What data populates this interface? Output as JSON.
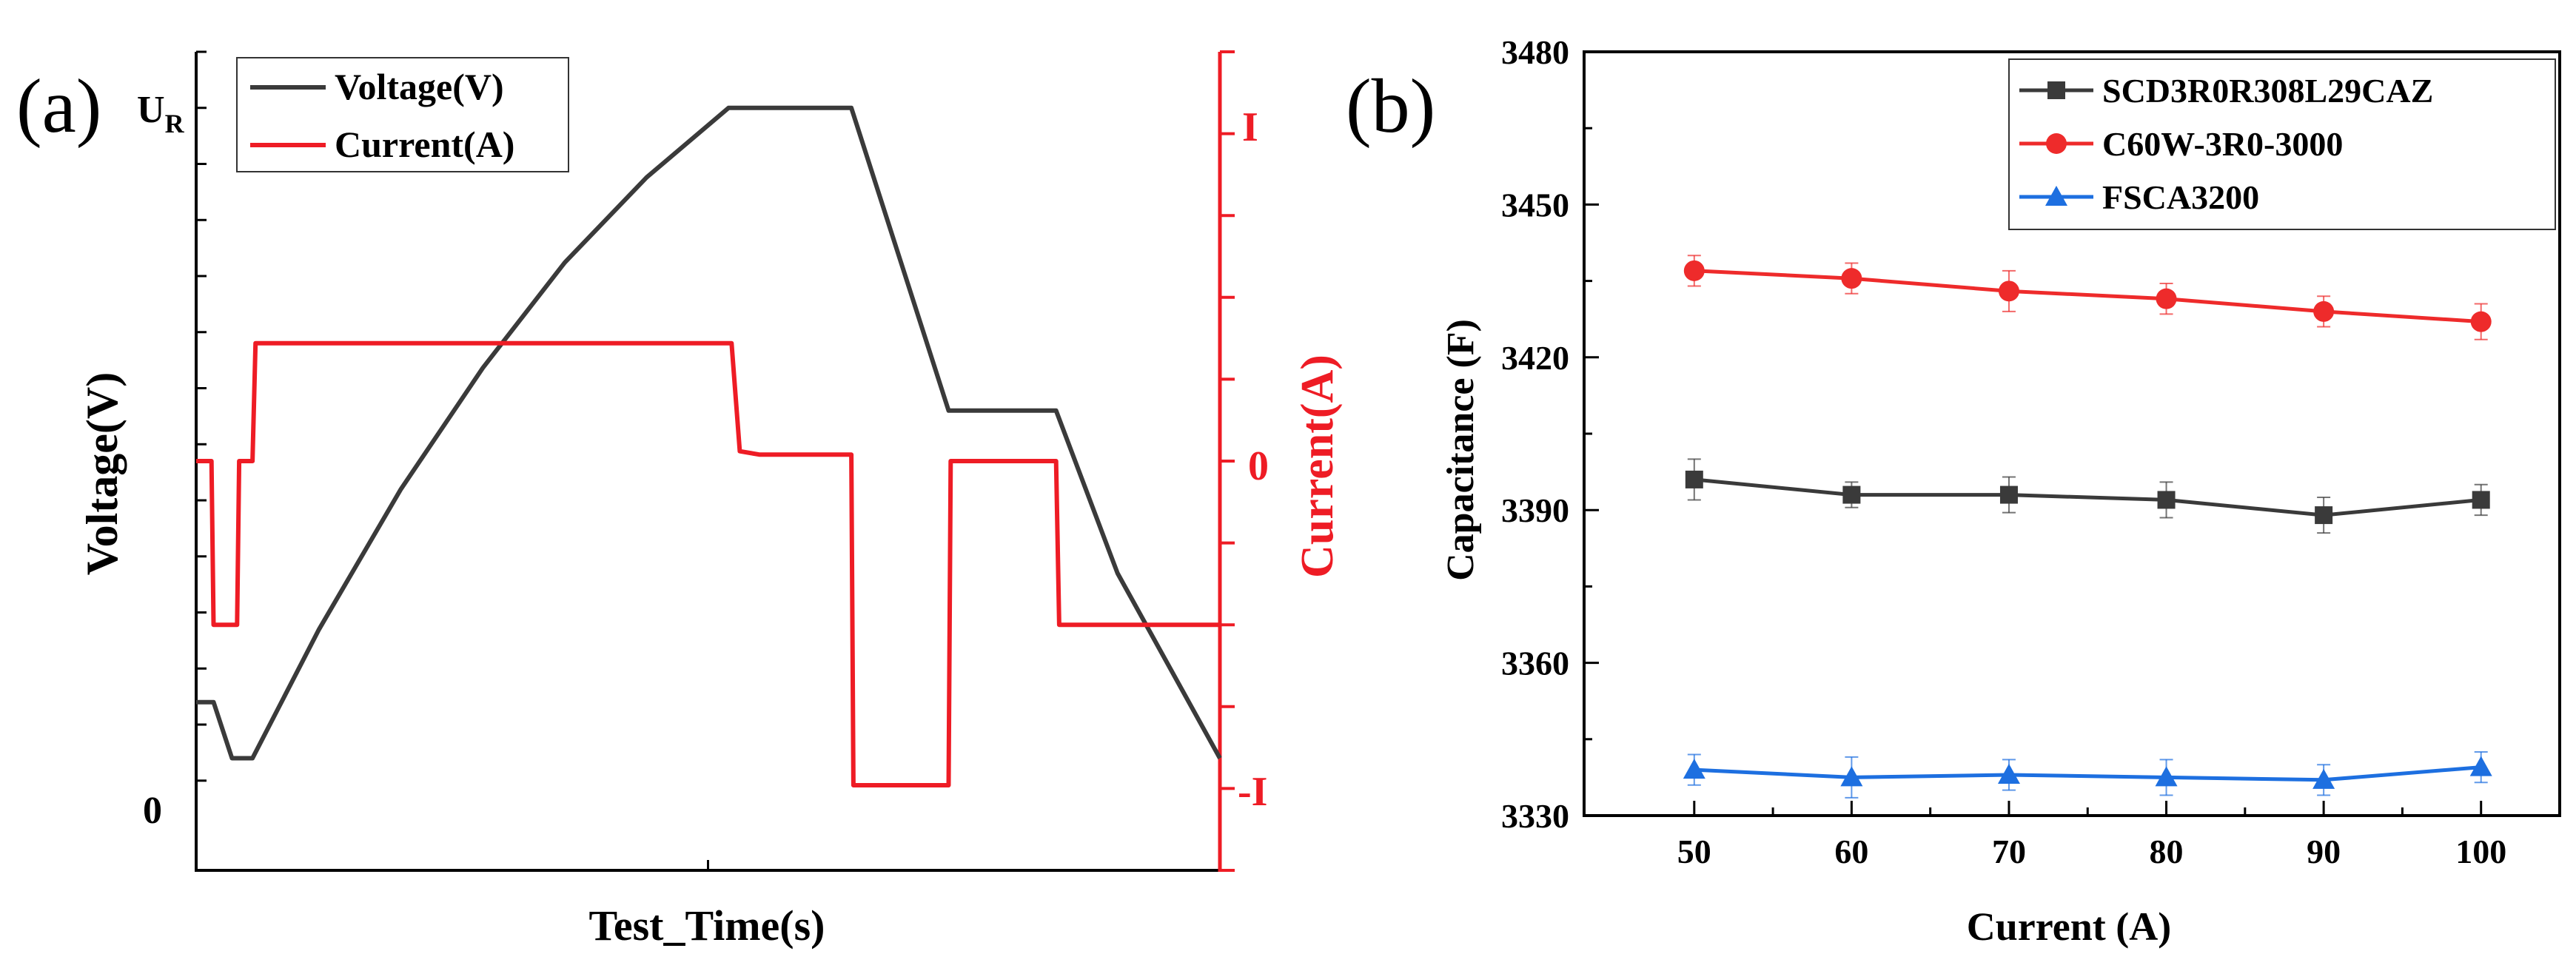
{
  "figure": {
    "panel_a_label": "(a)",
    "panel_b_label": "(b)"
  },
  "colors": {
    "axis": "#000000",
    "voltage": "#3a3a3a",
    "current": "#ee1c25",
    "scd": "#3a3a3a",
    "c60w": "#ee2b2b",
    "fsca": "#1d6fe0"
  },
  "chart_data": [
    {
      "type": "line",
      "id": "panel-a",
      "title": "",
      "xlabel": "Test_Time(s)",
      "ylabel": "Voltage(V)",
      "ylabel_right": "Current(A)",
      "xlim": [
        0,
        100
      ],
      "ylim": [
        -0.8,
        6.5
      ],
      "ylim_right": [
        -1.25,
        1.25
      ],
      "left_tick_labels": [
        {
          "text": "U",
          "sub": "R",
          "y": 6.0
        },
        {
          "text": "0",
          "y": 0.0
        }
      ],
      "right_tick_labels": [
        {
          "text": "I",
          "y": 1.0
        },
        {
          "text": "0",
          "y": 0.0
        },
        {
          "text": "-I",
          "y": -1.0
        }
      ],
      "left_minor_ticks": [
        -0.8,
        0.0,
        0.5,
        1.0,
        1.5,
        2.0,
        2.5,
        3.0,
        3.5,
        4.0,
        4.5,
        5.0,
        5.5,
        6.0,
        6.5
      ],
      "right_minor_ticks": [
        -1.25,
        -1.0,
        -0.75,
        -0.5,
        -0.25,
        0.0,
        0.25,
        0.5,
        0.75,
        1.0,
        1.25
      ],
      "series": [
        {
          "name": "Voltage(V)",
          "axis": "left",
          "color_key": "voltage",
          "points": [
            [
              0,
              0.7
            ],
            [
              1.7,
              0.7
            ],
            [
              3.5,
              0.2
            ],
            [
              5.5,
              0.2
            ],
            [
              12,
              1.35
            ],
            [
              20,
              2.6
            ],
            [
              28,
              3.68
            ],
            [
              36,
              4.62
            ],
            [
              44,
              5.38
            ],
            [
              52,
              6.0
            ],
            [
              64,
              6.0
            ],
            [
              73.5,
              3.3
            ],
            [
              84,
              3.3
            ],
            [
              90,
              1.85
            ],
            [
              100,
              0.2
            ]
          ]
        },
        {
          "name": "Current(A)",
          "axis": "right",
          "color_key": "current",
          "points": [
            [
              0,
              0
            ],
            [
              1.5,
              0
            ],
            [
              1.7,
              -0.5
            ],
            [
              4.0,
              -0.5
            ],
            [
              4.2,
              0
            ],
            [
              5.5,
              0
            ],
            [
              5.8,
              0.36
            ],
            [
              52.3,
              0.36
            ],
            [
              53.1,
              0.03
            ],
            [
              55,
              0.02
            ],
            [
              64,
              0.02
            ],
            [
              64.2,
              -0.99
            ],
            [
              73.5,
              -0.99
            ],
            [
              73.7,
              0
            ],
            [
              84,
              0
            ],
            [
              84.3,
              -0.5
            ],
            [
              100,
              -0.5
            ]
          ]
        }
      ],
      "legend": {
        "position": "top-left",
        "entries": [
          "Voltage(V)",
          "Current(A)"
        ]
      }
    },
    {
      "type": "line",
      "id": "panel-b",
      "title": "",
      "xlabel": "Current (A)",
      "ylabel": "Capacitance (F)",
      "xlim": [
        43,
        105
      ],
      "ylim": [
        3330,
        3480
      ],
      "xticks": [
        50,
        60,
        70,
        80,
        90,
        100
      ],
      "yticks": [
        3330,
        3360,
        3390,
        3420,
        3450,
        3480
      ],
      "x": [
        50,
        60,
        70,
        80,
        90,
        100
      ],
      "series": [
        {
          "name": "SCD3R0R308L29CAZ",
          "marker": "square",
          "color_key": "scd",
          "values": [
            3396,
            3393,
            3393,
            3392,
            3389,
            3392
          ],
          "errors": [
            4,
            2.5,
            3.5,
            3.5,
            3.5,
            3
          ]
        },
        {
          "name": "C60W-3R0-3000",
          "marker": "circle",
          "color_key": "c60w",
          "values": [
            3437,
            3435.5,
            3433,
            3431.5,
            3429,
            3427
          ],
          "errors": [
            3,
            3,
            4,
            3,
            3,
            3.5
          ]
        },
        {
          "name": "FSCA3200",
          "marker": "triangle",
          "color_key": "fsca",
          "values": [
            3339,
            3337.5,
            3338,
            3337.5,
            3337,
            3339.5
          ],
          "errors": [
            3,
            4,
            3,
            3.5,
            3,
            3
          ]
        }
      ],
      "legend": {
        "position": "top-right",
        "entries": [
          "SCD3R0R308L29CAZ",
          "C60W-3R0-3000",
          "FSCA3200"
        ]
      }
    }
  ]
}
